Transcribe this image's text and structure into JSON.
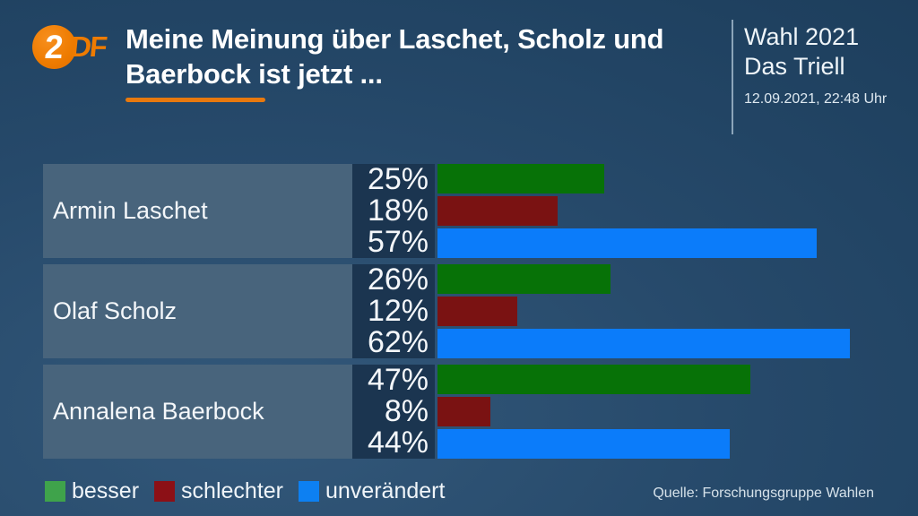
{
  "header": {
    "logo": {
      "circle_text": "2",
      "suffix": "DF"
    },
    "title_line1": "Meine Meinung über Laschet, Scholz und",
    "title_line2": "Baerbock ist jetzt ...",
    "program": {
      "line1": "Wahl 2021",
      "line2": "Das Triell",
      "timestamp": "12.09.2021, 22:48 Uhr"
    }
  },
  "chart_data": {
    "type": "bar",
    "orientation": "horizontal",
    "title": "Meine Meinung über Laschet, Scholz und Baerbock ist jetzt ...",
    "categories": [
      "Armin Laschet",
      "Olaf Scholz",
      "Annalena Baerbock"
    ],
    "series": [
      {
        "name": "besser",
        "values": [
          25,
          26,
          47
        ],
        "color": "#077207"
      },
      {
        "name": "schlechter",
        "values": [
          18,
          12,
          8
        ],
        "color": "#7a1212"
      },
      {
        "name": "unverändert",
        "values": [
          57,
          62,
          44
        ],
        "color": "#0b7cfa"
      }
    ],
    "unit": "%",
    "xlim": [
      0,
      72
    ],
    "grid": false,
    "legend_position": "bottom",
    "source": "Quelle: Forschungsgruppe Wahlen"
  },
  "legend": {
    "items": [
      {
        "label": "besser",
        "color": "#3fa34b"
      },
      {
        "label": "schlechter",
        "color": "#8c1016"
      },
      {
        "label": "unverändert",
        "color": "#0d80f2"
      }
    ]
  },
  "colors": {
    "accent_orange": "#e8790e",
    "background_blue": "#1f4160",
    "label_box": "#48647c",
    "value_box": "#1b3550",
    "bar_green": "#077207",
    "bar_red": "#7a1212",
    "bar_blue": "#0b7cfa"
  }
}
